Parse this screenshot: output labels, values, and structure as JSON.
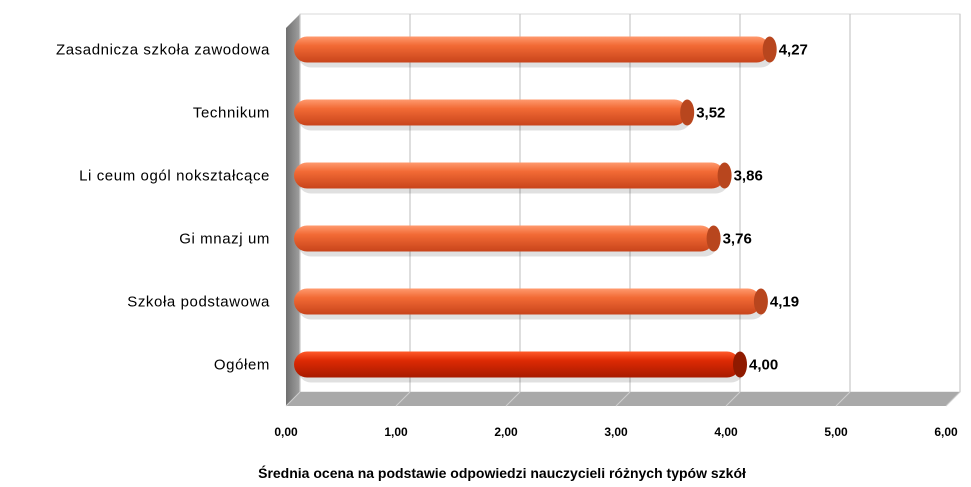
{
  "chart_data": {
    "type": "bar",
    "orientation": "horizontal",
    "categories": [
      "Zasadnicza szkoła zawodowa",
      "Technikum",
      "Li ceum ogól nokształcące",
      "Gi mnazj um",
      "Szkoła podstawowa",
      "Ogółem"
    ],
    "values": [
      4.27,
      3.52,
      3.86,
      3.76,
      4.19,
      4.0
    ],
    "value_labels": [
      "4,27",
      "3,52",
      "3,86",
      "3,76",
      "4,19",
      "4,00"
    ],
    "highlight_category": "Ogółem",
    "xlim": [
      0,
      6
    ],
    "x_ticks": [
      0,
      1,
      2,
      3,
      4,
      5,
      6
    ],
    "x_tick_labels": [
      "0,00",
      "1,00",
      "2,00",
      "3,00",
      "4,00",
      "5,00",
      "6,00"
    ],
    "xlabel": "Średnia ocena na podstawie odpowiedzi nauczycieli różnych typów szkół",
    "ylabel": "",
    "title": "",
    "grid": true,
    "legend": "none",
    "style": "3d-cylinder",
    "colors": {
      "bar": "#f26a35",
      "bar_highlight": "#dd2a04",
      "wall": "#ffffff",
      "side_wall": "#8c8c8c",
      "floor": "#a9a9a9",
      "grid": "#c8c8c8"
    }
  }
}
